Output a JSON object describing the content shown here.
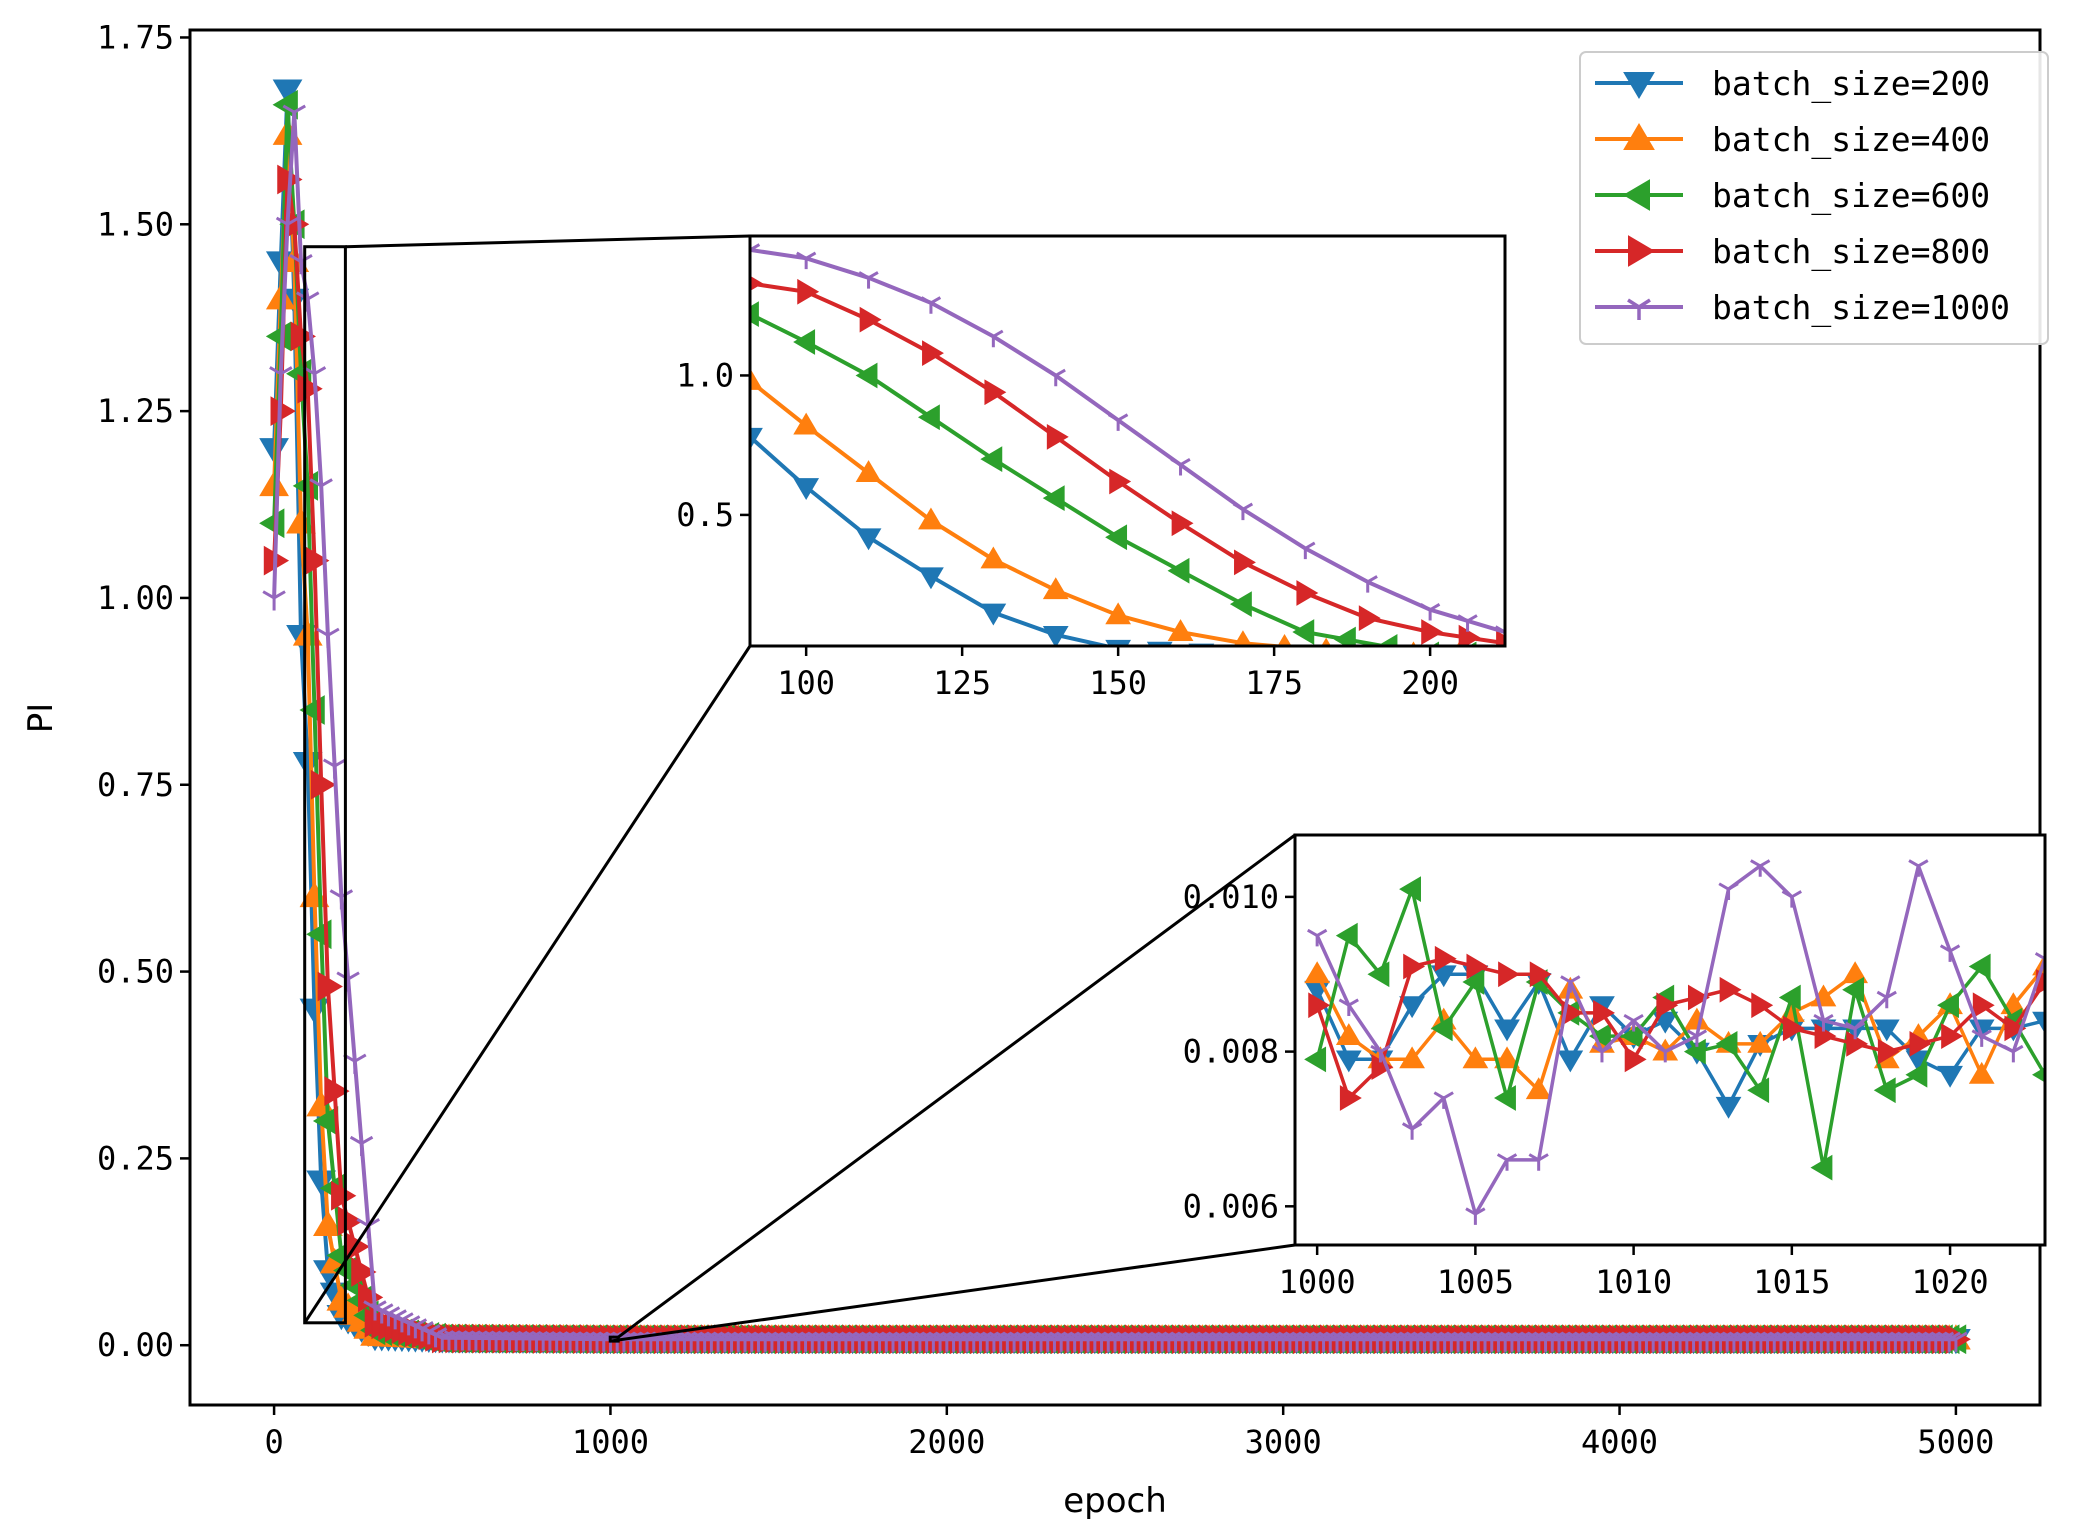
{
  "chart_data": [
    {
      "type": "line",
      "role": "main",
      "title": "",
      "xlabel": "epoch",
      "ylabel": "PI",
      "xlim": [
        -250,
        5250
      ],
      "ylim": [
        -0.08,
        1.76
      ],
      "xticks": [
        0,
        1000,
        2000,
        3000,
        4000,
        5000
      ],
      "xtick_labels": [
        "0",
        "1000",
        "2000",
        "3000",
        "4000",
        "5000"
      ],
      "yticks": [
        0.0,
        0.25,
        0.5,
        0.75,
        1.0,
        1.25,
        1.5,
        1.75
      ],
      "ytick_labels": [
        "0.00",
        "0.25",
        "0.50",
        "0.75",
        "1.00",
        "1.25",
        "1.50",
        "1.75"
      ],
      "grid": false,
      "legend_position": "top-right",
      "series": [
        {
          "name": "batch_size=200",
          "color": "#1f77b4",
          "marker": "triangle-down",
          "x": [
            0,
            20,
            40,
            60,
            80,
            100,
            120,
            140,
            160,
            200,
            300,
            500,
            1000,
            2000,
            3000,
            4000,
            5000
          ],
          "y": [
            1.2,
            1.45,
            1.68,
            1.4,
            0.95,
            0.78,
            0.45,
            0.22,
            0.1,
            0.04,
            0.012,
            0.009,
            0.008,
            0.008,
            0.008,
            0.008,
            0.008
          ]
        },
        {
          "name": "batch_size=400",
          "color": "#ff7f0e",
          "marker": "triangle-up",
          "x": [
            0,
            20,
            40,
            60,
            80,
            100,
            120,
            140,
            160,
            200,
            300,
            500,
            1000,
            2000,
            3000,
            4000,
            5000
          ],
          "y": [
            1.15,
            1.4,
            1.62,
            1.45,
            1.1,
            0.95,
            0.6,
            0.32,
            0.16,
            0.06,
            0.013,
            0.009,
            0.008,
            0.008,
            0.008,
            0.008,
            0.008
          ]
        },
        {
          "name": "batch_size=600",
          "color": "#2ca02c",
          "marker": "triangle-left",
          "x": [
            0,
            20,
            40,
            60,
            80,
            100,
            120,
            140,
            160,
            200,
            300,
            500,
            1000,
            2000,
            3000,
            4000,
            5000
          ],
          "y": [
            1.1,
            1.35,
            1.66,
            1.5,
            1.3,
            1.15,
            0.85,
            0.55,
            0.3,
            0.12,
            0.02,
            0.009,
            0.008,
            0.008,
            0.008,
            0.008,
            0.008
          ]
        },
        {
          "name": "batch_size=800",
          "color": "#d62728",
          "marker": "triangle-right",
          "x": [
            0,
            20,
            40,
            60,
            80,
            100,
            120,
            140,
            160,
            200,
            300,
            500,
            1000,
            2000,
            3000,
            4000,
            5000
          ],
          "y": [
            1.05,
            1.25,
            1.56,
            1.5,
            1.35,
            1.28,
            1.05,
            0.75,
            0.48,
            0.2,
            0.03,
            0.009,
            0.008,
            0.008,
            0.008,
            0.008,
            0.008
          ]
        },
        {
          "name": "batch_size=1000",
          "color": "#9467bd",
          "marker": "tri-down",
          "x": [
            0,
            20,
            40,
            60,
            80,
            100,
            120,
            140,
            160,
            200,
            300,
            500,
            1000,
            2000,
            3000,
            4000,
            5000
          ],
          "y": [
            1.0,
            1.3,
            1.5,
            1.65,
            1.45,
            1.4,
            1.3,
            1.15,
            0.95,
            0.6,
            0.05,
            0.01,
            0.008,
            0.008,
            0.008,
            0.008,
            0.008
          ]
        }
      ]
    },
    {
      "type": "line",
      "role": "inset-upper",
      "xlim": [
        91,
        212
      ],
      "ylim": [
        0.03,
        1.5
      ],
      "xticks": [
        100,
        125,
        150,
        175,
        200
      ],
      "xtick_labels": [
        "100",
        "125",
        "150",
        "175",
        "200"
      ],
      "yticks": [
        0.5,
        1.0
      ],
      "ytick_labels": [
        "0.5",
        "1.0"
      ],
      "zoom_region": {
        "x": [
          91,
          212
        ],
        "y": [
          0.03,
          1.47
        ]
      },
      "series": [
        {
          "name": "batch_size=200",
          "x": [
            91,
            100,
            110,
            120,
            130,
            140,
            150,
            170,
            212
          ],
          "y": [
            0.78,
            0.6,
            0.42,
            0.28,
            0.15,
            0.07,
            0.02,
            0.0,
            0.0
          ]
        },
        {
          "name": "batch_size=400",
          "x": [
            91,
            100,
            110,
            120,
            130,
            140,
            150,
            160,
            170,
            190,
            212
          ],
          "y": [
            0.98,
            0.82,
            0.65,
            0.48,
            0.34,
            0.23,
            0.14,
            0.08,
            0.04,
            0.0,
            0.0
          ]
        },
        {
          "name": "batch_size=600",
          "x": [
            91,
            100,
            110,
            120,
            130,
            140,
            150,
            160,
            170,
            180,
            200,
            212
          ],
          "y": [
            1.22,
            1.12,
            1.0,
            0.85,
            0.7,
            0.56,
            0.42,
            0.3,
            0.18,
            0.08,
            0.0,
            0.0
          ]
        },
        {
          "name": "batch_size=800",
          "x": [
            91,
            100,
            110,
            120,
            130,
            140,
            150,
            160,
            170,
            180,
            190,
            200,
            212
          ],
          "y": [
            1.33,
            1.3,
            1.2,
            1.08,
            0.94,
            0.78,
            0.62,
            0.47,
            0.33,
            0.22,
            0.13,
            0.08,
            0.04
          ]
        },
        {
          "name": "batch_size=1000",
          "x": [
            91,
            100,
            110,
            120,
            130,
            140,
            150,
            160,
            170,
            180,
            190,
            200,
            212
          ],
          "y": [
            1.45,
            1.42,
            1.35,
            1.26,
            1.14,
            1.0,
            0.84,
            0.68,
            0.52,
            0.38,
            0.26,
            0.16,
            0.08
          ]
        }
      ]
    },
    {
      "type": "line",
      "role": "inset-lower",
      "xlim": [
        999.3,
        1023
      ],
      "ylim": [
        0.0055,
        0.0108
      ],
      "xticks": [
        1000,
        1005,
        1010,
        1015,
        1020
      ],
      "xtick_labels": [
        "1000",
        "1005",
        "1010",
        "1015",
        "1020"
      ],
      "yticks": [
        0.006,
        0.008,
        0.01
      ],
      "ytick_labels": [
        "0.006",
        "0.008",
        "0.010"
      ],
      "zoom_region": {
        "x": [
          999.3,
          1023
        ],
        "y": [
          0.0055,
          0.0108
        ]
      },
      "series": [
        {
          "name": "batch_size=200",
          "x": [
            1000,
            1001,
            1002,
            1003,
            1004,
            1005,
            1006,
            1007,
            1008,
            1009,
            1010,
            1011,
            1012,
            1013,
            1014,
            1015,
            1016,
            1017,
            1018,
            1019,
            1020,
            1021,
            1022,
            1023
          ],
          "y": [
            0.0088,
            0.0079,
            0.0079,
            0.0086,
            0.009,
            0.009,
            0.0083,
            0.0089,
            0.0079,
            0.0086,
            0.0082,
            0.0084,
            0.008,
            0.0073,
            0.0081,
            0.0083,
            0.0083,
            0.0083,
            0.0083,
            0.0079,
            0.0077,
            0.0083,
            0.0083,
            0.0084
          ]
        },
        {
          "name": "batch_size=400",
          "x": [
            1000,
            1001,
            1002,
            1003,
            1004,
            1005,
            1006,
            1007,
            1008,
            1009,
            1010,
            1011,
            1012,
            1013,
            1014,
            1015,
            1016,
            1017,
            1018,
            1019,
            1020,
            1021,
            1022,
            1023
          ],
          "y": [
            0.009,
            0.0082,
            0.0079,
            0.0079,
            0.0084,
            0.0079,
            0.0079,
            0.0075,
            0.0088,
            0.0081,
            0.0082,
            0.008,
            0.0084,
            0.0081,
            0.0081,
            0.0085,
            0.0087,
            0.009,
            0.0079,
            0.0082,
            0.0086,
            0.0077,
            0.0086,
            0.0091
          ]
        },
        {
          "name": "batch_size=600",
          "x": [
            1000,
            1001,
            1002,
            1003,
            1004,
            1005,
            1006,
            1007,
            1008,
            1009,
            1010,
            1011,
            1012,
            1013,
            1014,
            1015,
            1016,
            1017,
            1018,
            1019,
            1020,
            1021,
            1022,
            1023
          ],
          "y": [
            0.0079,
            0.0095,
            0.009,
            0.0101,
            0.0083,
            0.0089,
            0.0074,
            0.0089,
            0.0085,
            0.0082,
            0.0082,
            0.0087,
            0.008,
            0.0081,
            0.0075,
            0.0087,
            0.0065,
            0.0088,
            0.0075,
            0.0077,
            0.0086,
            0.0091,
            0.0084,
            0.0077
          ]
        },
        {
          "name": "batch_size=800",
          "x": [
            1000,
            1001,
            1002,
            1003,
            1004,
            1005,
            1006,
            1007,
            1008,
            1009,
            1010,
            1011,
            1012,
            1013,
            1014,
            1015,
            1016,
            1017,
            1018,
            1019,
            1020,
            1021,
            1022,
            1023
          ],
          "y": [
            0.0086,
            0.0074,
            0.0078,
            0.0091,
            0.0092,
            0.0091,
            0.009,
            0.009,
            0.0085,
            0.0085,
            0.0079,
            0.0086,
            0.0087,
            0.0088,
            0.0086,
            0.0083,
            0.0082,
            0.0081,
            0.008,
            0.0081,
            0.0082,
            0.0086,
            0.0083,
            0.0089
          ]
        },
        {
          "name": "batch_size=1000",
          "x": [
            1000,
            1001,
            1002,
            1003,
            1004,
            1005,
            1006,
            1007,
            1008,
            1009,
            1010,
            1011,
            1012,
            1013,
            1014,
            1015,
            1016,
            1017,
            1018,
            1019,
            1020,
            1021,
            1022,
            1023
          ],
          "y": [
            0.0095,
            0.0086,
            0.008,
            0.007,
            0.0074,
            0.0059,
            0.0066,
            0.0066,
            0.0089,
            0.008,
            0.0084,
            0.008,
            0.0082,
            0.0101,
            0.0104,
            0.01,
            0.0084,
            0.0083,
            0.0087,
            0.0104,
            0.0093,
            0.0082,
            0.008,
            0.0092
          ]
        }
      ]
    }
  ]
}
